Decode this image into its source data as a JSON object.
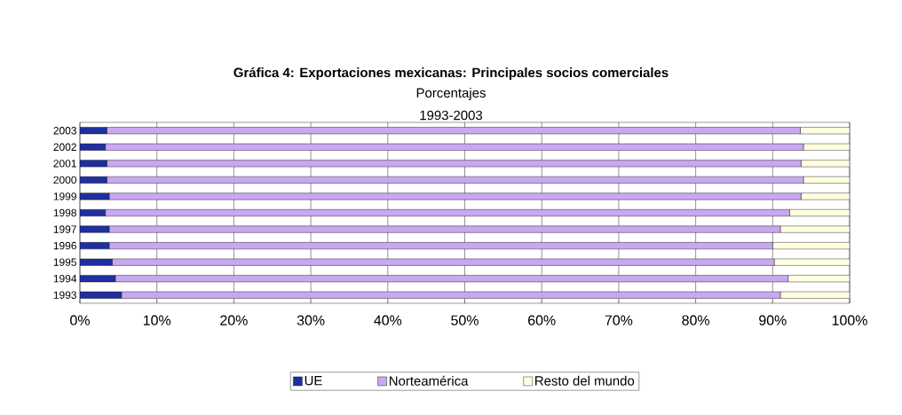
{
  "chart_data": {
    "type": "bar",
    "orientation": "horizontal",
    "stacked": true,
    "title": "Gráfica 4: Exportaciones mexicanas: Principales socios comerciales",
    "subtitle": "Porcentajes",
    "annotations": [
      "1993-2003"
    ],
    "categories": [
      "2003",
      "2002",
      "2001",
      "2000",
      "1999",
      "1998",
      "1997",
      "1996",
      "1995",
      "1994",
      "1993"
    ],
    "series": [
      {
        "name": "UE",
        "color": "#1f2f9f",
        "values": [
          3.5,
          3.3,
          3.5,
          3.5,
          3.8,
          3.3,
          3.8,
          3.8,
          4.2,
          4.6,
          5.4
        ]
      },
      {
        "name": "Norteamérica",
        "color": "#c8a8f0",
        "values": [
          90.1,
          90.7,
          90.2,
          90.5,
          89.9,
          88.9,
          87.2,
          86.2,
          86.0,
          87.4,
          85.6
        ]
      },
      {
        "name": "Resto del mundo",
        "color": "#ffffe0",
        "values": [
          6.4,
          6.0,
          6.3,
          6.0,
          6.3,
          7.8,
          9.0,
          10.0,
          9.8,
          8.0,
          9.0
        ]
      }
    ],
    "xlim": [
      0,
      100
    ],
    "xticks": [
      {
        "value": 0,
        "label": "0%"
      },
      {
        "value": 10,
        "label": "10%"
      },
      {
        "value": 20,
        "label": "20%"
      },
      {
        "value": 30,
        "label": "30%"
      },
      {
        "value": 40,
        "label": "40%"
      },
      {
        "value": 50,
        "label": "50%"
      },
      {
        "value": 60,
        "label": "60%"
      },
      {
        "value": 70,
        "label": "70%"
      },
      {
        "value": 80,
        "label": "80%"
      },
      {
        "value": 90,
        "label": "90%"
      },
      {
        "value": 100,
        "label": "100%"
      }
    ],
    "grid": "x",
    "legend": "bottom"
  }
}
